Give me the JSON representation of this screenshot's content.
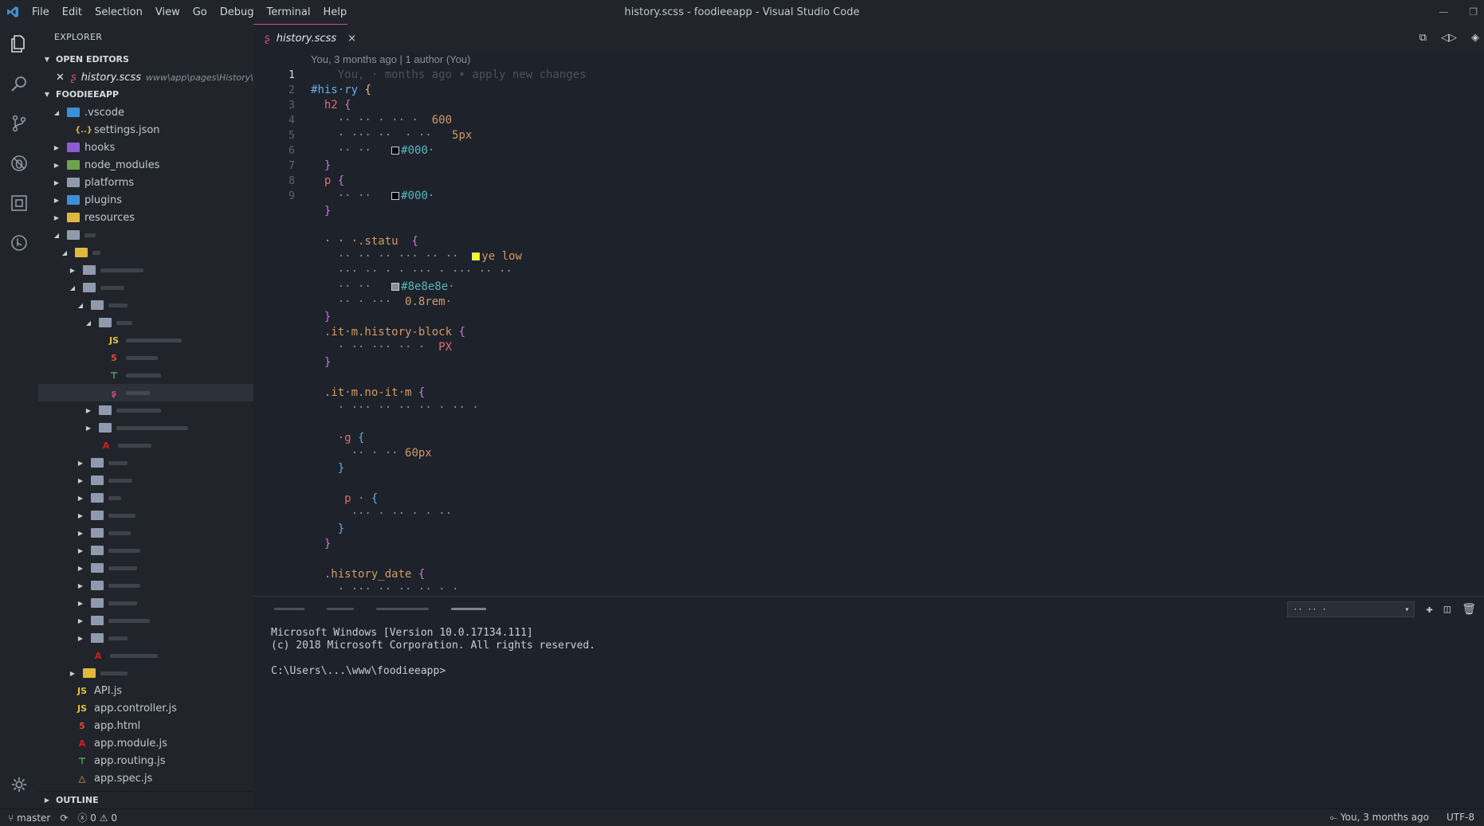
{
  "window": {
    "title": "history.scss - foodieeapp - Visual Studio Code",
    "menu": [
      "File",
      "Edit",
      "Selection",
      "View",
      "Go",
      "Debug",
      "Terminal",
      "Help"
    ]
  },
  "sidebar": {
    "title": "EXPLORER",
    "open_editors_header": "OPEN EDITORS",
    "open_editor": {
      "name": "history.scss",
      "path": "www\\app\\pages\\History\\h..."
    },
    "project_header": "FOODIEEAPP",
    "tree": [
      {
        "label": ".vscode",
        "icon": "folder-vscode-icon",
        "indent": 1,
        "expanded": true
      },
      {
        "label": "settings.json",
        "icon": "json-icon",
        "indent": 2
      },
      {
        "label": "hooks",
        "icon": "folder-hooks-icon",
        "indent": 1,
        "expanded": false
      },
      {
        "label": "node_modules",
        "icon": "folder-node-icon",
        "indent": 1,
        "expanded": false
      },
      {
        "label": "platforms",
        "icon": "folder-icon",
        "indent": 1,
        "expanded": false
      },
      {
        "label": "plugins",
        "icon": "folder-plugins-icon",
        "indent": 1,
        "expanded": false
      },
      {
        "label": "resources",
        "icon": "folder-resources-icon",
        "indent": 1,
        "expanded": false
      },
      {
        "label": "",
        "icon": "folder-icon",
        "indent": 1,
        "expanded": true
      },
      {
        "label": "",
        "icon": "folder-app-icon",
        "indent": 2,
        "expanded": true
      },
      {
        "label": "",
        "icon": "folder-icon",
        "indent": 3,
        "expanded": false
      },
      {
        "label": "",
        "icon": "folder-icon",
        "indent": 3,
        "expanded": true
      },
      {
        "label": "",
        "icon": "folder-icon",
        "indent": 4,
        "expanded": true
      },
      {
        "label": "",
        "icon": "folder-icon",
        "indent": 5,
        "expanded": true
      },
      {
        "label": "",
        "icon": "js-icon",
        "indent": 6
      },
      {
        "label": "",
        "icon": "html-icon",
        "indent": 6
      },
      {
        "label": "",
        "icon": "routing-icon",
        "indent": 6
      },
      {
        "label": "",
        "icon": "scss-icon",
        "indent": 6,
        "selected": true
      },
      {
        "label": "",
        "icon": "folder-icon",
        "indent": 5,
        "expanded": false
      },
      {
        "label": "",
        "icon": "folder-icon",
        "indent": 5,
        "expanded": false
      },
      {
        "label": "",
        "icon": "angular-icon",
        "indent": 5
      },
      {
        "label": "",
        "icon": "folder-icon",
        "indent": 4,
        "expanded": false
      },
      {
        "label": "",
        "icon": "folder-icon",
        "indent": 4,
        "expanded": false
      },
      {
        "label": "",
        "icon": "folder-icon",
        "indent": 4,
        "expanded": false
      },
      {
        "label": "",
        "icon": "folder-icon",
        "indent": 4,
        "expanded": false
      },
      {
        "label": "",
        "icon": "folder-icon",
        "indent": 4,
        "expanded": false
      },
      {
        "label": "",
        "icon": "folder-icon",
        "indent": 4,
        "expanded": false
      },
      {
        "label": "",
        "icon": "folder-icon",
        "indent": 4,
        "expanded": false
      },
      {
        "label": "",
        "icon": "folder-icon",
        "indent": 4,
        "expanded": false
      },
      {
        "label": "",
        "icon": "folder-icon",
        "indent": 4,
        "expanded": false
      },
      {
        "label": "",
        "icon": "folder-icon",
        "indent": 4,
        "expanded": false
      },
      {
        "label": "",
        "icon": "folder-icon",
        "indent": 4,
        "expanded": false
      },
      {
        "label": "",
        "icon": "angular-icon",
        "indent": 4
      },
      {
        "label": "",
        "icon": "folder-yellow-icon",
        "indent": 3,
        "expanded": false
      },
      {
        "label": "API.js",
        "icon": "js-icon",
        "indent": 2
      },
      {
        "label": "app.controller.js",
        "icon": "js-icon",
        "indent": 2
      },
      {
        "label": "app.html",
        "icon": "html-icon",
        "indent": 2
      },
      {
        "label": "app.module.js",
        "icon": "angular-icon",
        "indent": 2
      },
      {
        "label": "app.routing.js",
        "icon": "routing-icon",
        "indent": 2
      },
      {
        "label": "app.spec.js",
        "icon": "spec-icon",
        "indent": 2
      }
    ],
    "outline_header": "OUTLINE"
  },
  "tab": {
    "label": "history.scss",
    "close": "×"
  },
  "editor": {
    "blame": "You, 3 months ago | 1 author (You)",
    "line_numbers": [
      "1",
      "2",
      "3",
      "4",
      "5",
      "6",
      "7",
      "8",
      "9",
      "",
      "",
      "",
      "",
      "",
      "",
      "",
      "",
      "",
      "",
      "",
      "",
      "",
      "",
      "",
      "",
      "",
      "",
      "",
      "",
      "",
      "",
      "",
      "",
      "",
      "",
      ""
    ],
    "lines": [
      [
        {
          "t": "    You, · months ago • apply new changes",
          "c": "c-blame"
        }
      ],
      [
        {
          "t": "#",
          "c": "c-sel"
        },
        {
          "t": "his",
          "c": "c-sel"
        },
        {
          "t": "·",
          "c": "c-sel"
        },
        {
          "t": "ry ",
          "c": "c-sel"
        },
        {
          "t": "{",
          "c": "c-br"
        }
      ],
      [
        {
          "t": "  ",
          "c": ""
        },
        {
          "t": "h2",
          "c": "c-tag"
        },
        {
          "t": " {",
          "c": "c-br2"
        }
      ],
      [
        {
          "t": "    ·· ·· · ·· ·  ",
          "c": "c-prop"
        },
        {
          "t": "600",
          "c": "c-num"
        }
      ],
      [
        {
          "t": "    · ··· ··  · ··   ",
          "c": "c-prop"
        },
        {
          "t": "5px",
          "c": "c-num"
        }
      ],
      [
        {
          "t": "    ·· ··   ",
          "c": "c-prop"
        },
        {
          "t": "#000",
          "c": "c-hex",
          "sw": "#000000"
        },
        {
          "t": "·",
          "c": "c-prop"
        }
      ],
      [
        {
          "t": "  }",
          "c": "c-br2"
        }
      ],
      [
        {
          "t": "  ",
          "c": ""
        },
        {
          "t": "p",
          "c": "c-tag"
        },
        {
          "t": " {",
          "c": "c-br2"
        }
      ],
      [
        {
          "t": "    ·· ··   ",
          "c": "c-prop"
        },
        {
          "t": "#000",
          "c": "c-hex",
          "sw": "#000000"
        },
        {
          "t": "·",
          "c": "c-prop"
        }
      ],
      [
        {
          "t": "  }",
          "c": "c-br2"
        }
      ],
      [
        {
          "t": "",
          "c": ""
        }
      ],
      [
        {
          "t": "  ",
          "c": ""
        },
        {
          "t": "· · ·.statu  ",
          "c": "c-cls"
        },
        {
          "t": "{",
          "c": "c-br2"
        }
      ],
      [
        {
          "t": "    ·· ·· ·· ··· ·· ··  ",
          "c": "c-prop"
        },
        {
          "t": "ye low",
          "c": "c-num",
          "sw": "#ffff00"
        }
      ],
      [
        {
          "t": "    ··· ·· · · ··· · ··· ·· ··",
          "c": "c-prop"
        }
      ],
      [
        {
          "t": "    ·· ··   ",
          "c": "c-prop"
        },
        {
          "t": "#8e8e8e",
          "c": "c-hex",
          "sw": "#8e8e8e"
        },
        {
          "t": "·",
          "c": "c-prop"
        }
      ],
      [
        {
          "t": "    ·· · ···  ",
          "c": "c-prop"
        },
        {
          "t": "0.8rem",
          "c": "c-num"
        },
        {
          "t": "·",
          "c": "c-prop"
        }
      ],
      [
        {
          "t": "  }",
          "c": "c-br2"
        }
      ],
      [
        {
          "t": "  ",
          "c": ""
        },
        {
          "t": ".it·m.history-block",
          "c": "c-cls"
        },
        {
          "t": " {",
          "c": "c-br2"
        }
      ],
      [
        {
          "t": "    · ·· ··· ·· ·  ",
          "c": "c-prop"
        },
        {
          "t": "PX",
          "c": "c-tag"
        }
      ],
      [
        {
          "t": "  }",
          "c": "c-br2"
        }
      ],
      [
        {
          "t": "",
          "c": ""
        }
      ],
      [
        {
          "t": "  ",
          "c": ""
        },
        {
          "t": ".it·m.no-it·m",
          "c": "c-cls"
        },
        {
          "t": " {",
          "c": "c-br2"
        }
      ],
      [
        {
          "t": "    · ··· ·· ·· ·· · ·· ·",
          "c": "c-prop"
        }
      ],
      [
        {
          "t": "",
          "c": ""
        }
      ],
      [
        {
          "t": "    ",
          "c": ""
        },
        {
          "t": "·g",
          "c": "c-tag"
        },
        {
          "t": " {",
          "c": "c-br3"
        }
      ],
      [
        {
          "t": "      ·· · ·· ",
          "c": "c-prop"
        },
        {
          "t": "60px",
          "c": "c-num"
        }
      ],
      [
        {
          "t": "    }",
          "c": "c-br3"
        }
      ],
      [
        {
          "t": "",
          "c": ""
        }
      ],
      [
        {
          "t": "     ",
          "c": ""
        },
        {
          "t": "p ·",
          "c": "c-tag"
        },
        {
          "t": " {",
          "c": "c-br3"
        }
      ],
      [
        {
          "t": "      ··· · ·· · · ··",
          "c": "c-prop"
        }
      ],
      [
        {
          "t": "    }",
          "c": "c-br3"
        }
      ],
      [
        {
          "t": "  }",
          "c": "c-br2"
        }
      ],
      [
        {
          "t": "",
          "c": ""
        }
      ],
      [
        {
          "t": "  ",
          "c": ""
        },
        {
          "t": ".history_date",
          "c": "c-cls"
        },
        {
          "t": " {",
          "c": "c-br2"
        }
      ],
      [
        {
          "t": "    · ··· ·· ·· ·· · ·",
          "c": "c-prop"
        }
      ]
    ]
  },
  "terminal": {
    "lines": [
      "Microsoft Windows [Version 10.0.17134.111]",
      "(c) 2018 Microsoft Corporation. All rights reserved.",
      "",
      "C:\\Users\\...\\www\\foodieeapp>"
    ]
  },
  "statusbar": {
    "branch": "master",
    "errors": "0",
    "warnings": "0",
    "blame": "You, 3 months ago",
    "encoding": "UTF-8"
  }
}
